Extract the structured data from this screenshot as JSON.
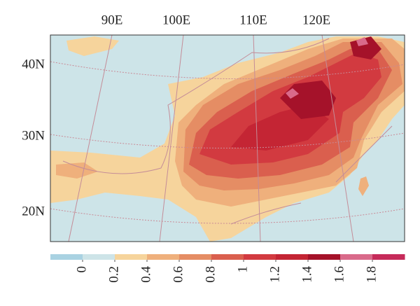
{
  "map": {
    "lon_labels": [
      "90E",
      "100E",
      "110E",
      "120E"
    ],
    "lat_labels": [
      "40N",
      "30N",
      "20N"
    ]
  },
  "colorbar": {
    "lim": [
      -0.2,
      2
    ],
    "ticks": [
      0,
      0.2,
      0.4,
      0.6,
      0.8,
      1,
      1.2,
      1.4,
      1.6,
      1.8
    ],
    "colors": [
      "#a9d2e2",
      "#cde4e8",
      "#f6d49c",
      "#efb07c",
      "#e58d64",
      "#da5f4e",
      "#d23a40",
      "#c42534",
      "#a5122a",
      "#d96a8a",
      "#c62b5a"
    ]
  }
}
